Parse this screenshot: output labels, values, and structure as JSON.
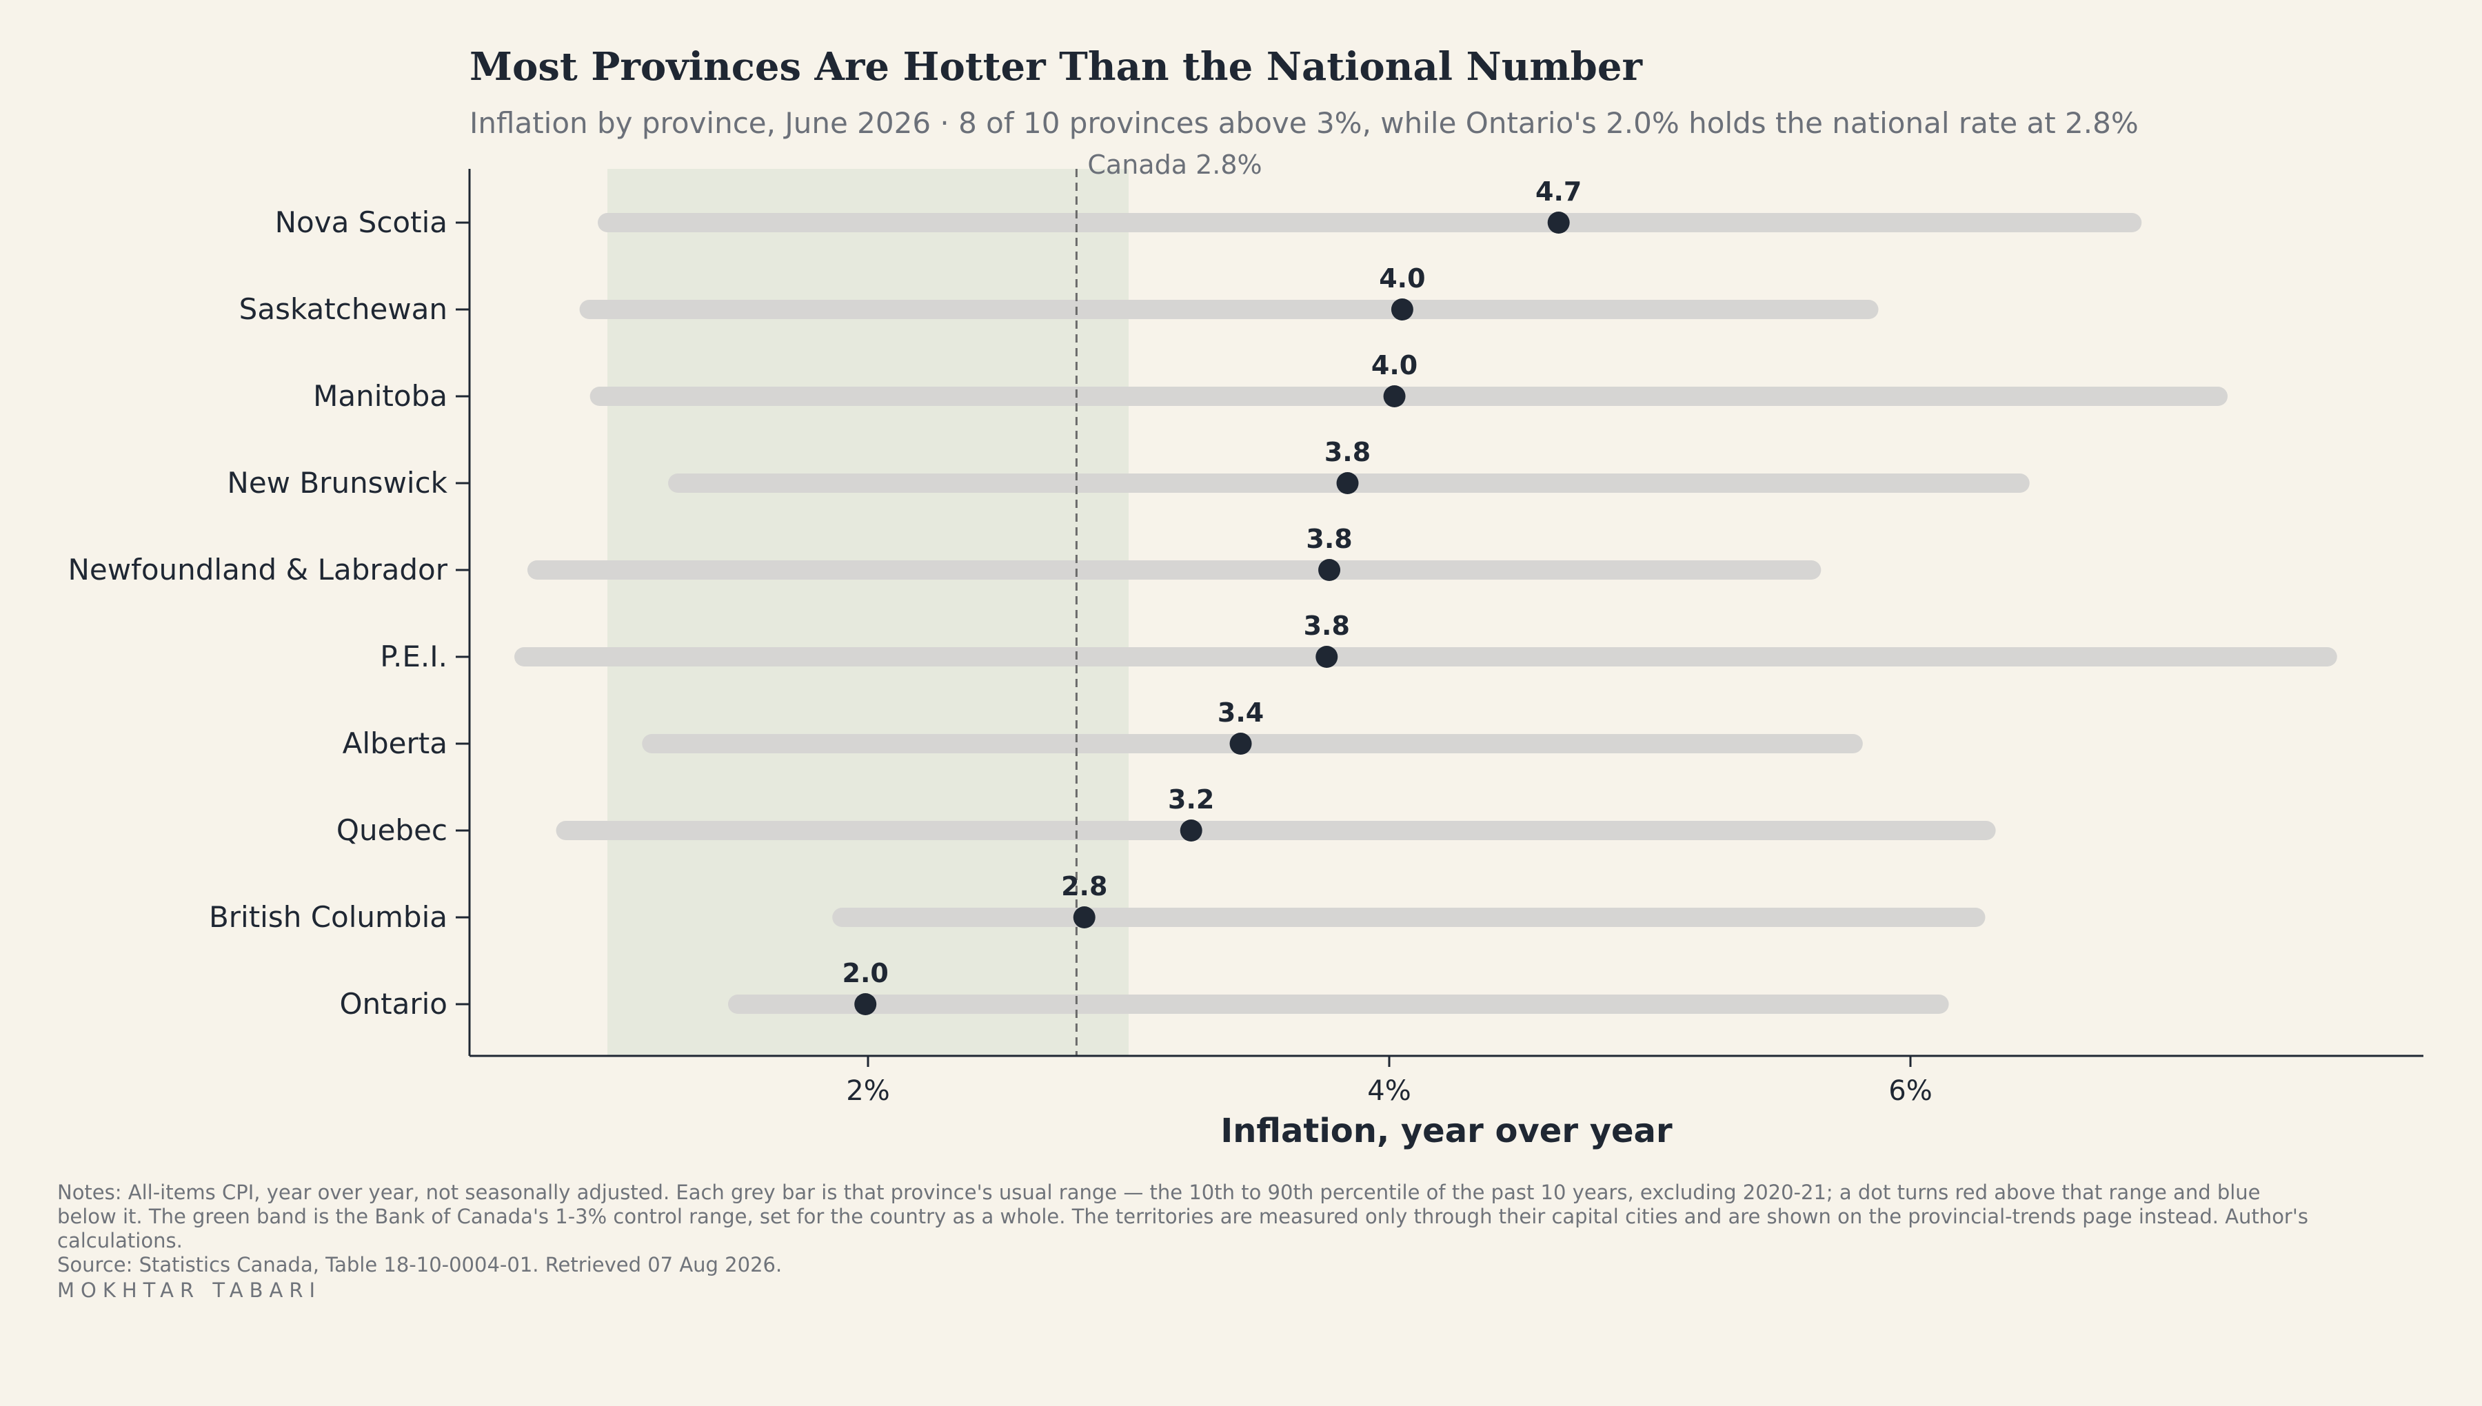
{
  "title": "Most Provinces Are Hotter Than the National Number",
  "subtitle": "Inflation by province, June 2026 · 8 of 10 provinces above 3%, while Ontario's 2.0% holds the national rate at 2.8%",
  "notes": {
    "text": "Notes: All-items CPI, year over year, not seasonally adjusted. Each grey bar is that province's usual range — the 10th to 90th percentile of the past 10 years, excluding 2020-21; a dot turns red above that range and blue below it. The green band is the Bank of Canada's 1-3% control range, set for the country as a whole. The territories are measured only through their capital cities and are shown on the provincial-trends page instead. Author's calculations.",
    "source": "Source: Statistics Canada, Table 18-10-0004-01. Retrieved 07 Aug 2026.",
    "author": "MOKHTAR TABARI"
  },
  "colors": {
    "background": "#f7f3ea",
    "range_bar": "#d6d5d3",
    "dot": "#1f2733",
    "target_band": "#e6e9dd",
    "reference_line": "#6b6b6b",
    "text_dark": "#1f2733",
    "text_muted": "#6b7079"
  },
  "chart_data": {
    "type": "dot-range",
    "xlabel": "Inflation, year over year",
    "ylabel": "",
    "xlim": [
      0.5,
      8.0
    ],
    "xticks": [
      2,
      4,
      6
    ],
    "xtick_labels": [
      "2%",
      "4%",
      "6%"
    ],
    "target_band": [
      1.0,
      3.0
    ],
    "reference": {
      "label": "Canada 2.8%",
      "value": 2.8
    },
    "categories": [
      "Nova Scotia",
      "Saskatchewan",
      "Manitoba",
      "New Brunswick",
      "Newfoundland & Labrador",
      "P.E.I.",
      "Alberta",
      "Quebec",
      "British Columbia",
      "Ontario"
    ],
    "values": [
      4.65,
      4.05,
      4.02,
      3.84,
      3.77,
      3.76,
      3.43,
      3.24,
      2.83,
      1.99
    ],
    "value_labels": [
      "4.7",
      "4.0",
      "4.0",
      "3.8",
      "3.8",
      "3.8",
      "3.4",
      "3.2",
      "2.8",
      "2.0"
    ],
    "range_low": [
      1.0,
      0.93,
      0.97,
      1.27,
      0.73,
      0.68,
      1.17,
      0.84,
      1.9,
      1.5
    ],
    "range_high": [
      6.85,
      5.84,
      7.18,
      6.42,
      5.62,
      7.6,
      5.78,
      6.29,
      6.25,
      6.11
    ]
  }
}
